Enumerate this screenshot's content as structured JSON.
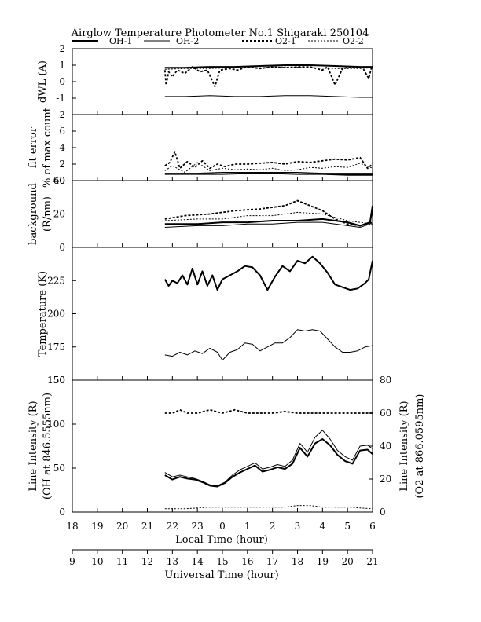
{
  "chart_data": {
    "type": "line",
    "title": "Airglow Temperature Photometer No.1  Shigaraki  250104",
    "legend": {
      "placement": "top",
      "entries": [
        "OH-1",
        "OH-2",
        "O2-1",
        "O2-2"
      ]
    },
    "series_styles": [
      {
        "name": "OH-1",
        "dash": "solid-thick"
      },
      {
        "name": "OH-2",
        "dash": "solid-thin"
      },
      {
        "name": "O2-1",
        "dash": "dashed-thick"
      },
      {
        "name": "O2-2",
        "dash": "dashed-thin"
      }
    ],
    "x_local": {
      "label": "Local Time (hour)",
      "ticks": [
        "18",
        "19",
        "20",
        "21",
        "22",
        "23",
        "0",
        "1",
        "2",
        "3",
        "4",
        "5",
        "6"
      ],
      "range": [
        18,
        30
      ]
    },
    "x_universal": {
      "label": "Universal Time (hour)",
      "ticks": [
        "9",
        "10",
        "11",
        "12",
        "13",
        "14",
        "15",
        "16",
        "17",
        "18",
        "19",
        "20",
        "21"
      ],
      "range": [
        9,
        21
      ]
    },
    "panels": [
      {
        "id": "dwl",
        "ylabel": [
          "dWL (A)"
        ],
        "ylim": [
          -2,
          2
        ],
        "yticks": [
          "-2",
          "-1",
          "0",
          "1",
          "2"
        ],
        "series": [
          {
            "name": "OH-1",
            "x": [
              21.7,
              22.5,
              23.5,
              24.5,
              25.5,
              26.5,
              27.5,
              28.5,
              29.5,
              30
            ],
            "y": [
              0.85,
              0.85,
              0.9,
              0.9,
              0.95,
              1.0,
              1.0,
              0.95,
              0.9,
              0.9
            ]
          },
          {
            "name": "OH-2",
            "x": [
              21.7,
              22.5,
              23.5,
              24.5,
              25.5,
              26.5,
              27.5,
              28.5,
              29.5,
              30
            ],
            "y": [
              -0.9,
              -0.9,
              -0.85,
              -0.9,
              -0.9,
              -0.85,
              -0.85,
              -0.9,
              -0.95,
              -0.95
            ]
          },
          {
            "name": "O2-1",
            "x": [
              21.7,
              21.75,
              21.85,
              22.0,
              22.2,
              22.5,
              22.8,
              23.1,
              23.4,
              23.7,
              23.9,
              24.3,
              24.6,
              25.0,
              25.5,
              26.0,
              26.5,
              27.0,
              27.5,
              28.0,
              28.2,
              28.5,
              28.8,
              29.2,
              29.6,
              29.85,
              29.95,
              30
            ],
            "y": [
              0.7,
              -0.2,
              0.6,
              0.3,
              0.7,
              0.5,
              0.9,
              0.6,
              0.7,
              -0.3,
              0.7,
              0.8,
              0.7,
              0.9,
              0.8,
              0.9,
              0.85,
              0.9,
              0.9,
              0.7,
              0.9,
              -0.2,
              0.8,
              0.9,
              0.85,
              0.2,
              0.8,
              0.9
            ]
          },
          {
            "name": "O2-2",
            "x": [
              21.7,
              22.5,
              23.5,
              24.5,
              25.5,
              26.5,
              27.5,
              28.5,
              29.5,
              30
            ],
            "y": [
              0.75,
              0.8,
              0.8,
              0.85,
              0.85,
              0.9,
              0.85,
              0.8,
              0.8,
              0.85
            ]
          }
        ]
      },
      {
        "id": "fit",
        "ylabel": [
          "fit error",
          "% of max count"
        ],
        "ylim": [
          0,
          8
        ],
        "yticks": [
          "0",
          "2",
          "4",
          "6"
        ],
        "series": [
          {
            "name": "OH-1",
            "x": [
              21.7,
              23,
              24,
              25,
              26,
              27,
              28,
              29,
              30
            ],
            "y": [
              0.8,
              0.8,
              0.8,
              0.9,
              0.9,
              0.8,
              0.8,
              0.7,
              0.7
            ]
          },
          {
            "name": "OH-2",
            "x": [
              21.7,
              23,
              24,
              25,
              26,
              27,
              28,
              29,
              30
            ],
            "y": [
              0.9,
              0.9,
              1.0,
              1.0,
              1.0,
              1.0,
              0.9,
              0.9,
              0.9
            ]
          },
          {
            "name": "O2-1",
            "x": [
              21.7,
              21.9,
              22.1,
              22.3,
              22.6,
              22.9,
              23.2,
              23.5,
              23.8,
              24.1,
              24.5,
              25.0,
              25.5,
              26.0,
              26.5,
              27.0,
              27.5,
              28.0,
              28.5,
              29.0,
              29.5,
              29.8,
              30
            ],
            "y": [
              1.8,
              2.2,
              3.5,
              1.5,
              2.3,
              1.6,
              2.4,
              1.5,
              2.0,
              1.7,
              2.0,
              2.0,
              2.1,
              2.2,
              2.0,
              2.3,
              2.2,
              2.4,
              2.6,
              2.5,
              2.8,
              1.5,
              2.0
            ]
          },
          {
            "name": "O2-2",
            "x": [
              21.7,
              22.0,
              22.5,
              23.0,
              23.5,
              24.0,
              24.5,
              25.0,
              25.5,
              26.0,
              26.5,
              27.0,
              27.5,
              28.0,
              28.5,
              29.0,
              29.5,
              30
            ],
            "y": [
              1.2,
              1.8,
              1.0,
              2.2,
              1.2,
              1.5,
              1.3,
              1.4,
              1.3,
              1.5,
              1.2,
              1.3,
              1.6,
              1.5,
              1.7,
              1.6,
              2.1,
              1.5
            ]
          }
        ]
      },
      {
        "id": "bg",
        "ylabel": [
          "background",
          "(R/nm)"
        ],
        "ylim": [
          0,
          40
        ],
        "yticks": [
          "0",
          "20",
          "40"
        ],
        "yticks_minor": [
          "60"
        ],
        "series": [
          {
            "name": "OH-1",
            "x": [
              21.7,
              23,
              24,
              25,
              26,
              27,
              28,
              29,
              29.5,
              29.9,
              30
            ],
            "y": [
              14,
              14,
              15,
              15,
              16,
              16,
              17,
              15,
              13,
              15,
              25
            ]
          },
          {
            "name": "OH-2",
            "x": [
              21.7,
              23,
              24,
              25,
              26,
              27,
              28,
              29,
              29.5,
              29.9,
              30
            ],
            "y": [
              12,
              13,
              13,
              14,
              14,
              15,
              15,
              13,
              12,
              14,
              22
            ]
          },
          {
            "name": "O2-1",
            "x": [
              21.7,
              22.5,
              23.5,
              24.5,
              25.5,
              26.5,
              27.0,
              27.5,
              28.0,
              28.5,
              29.0,
              29.5,
              30
            ],
            "y": [
              17,
              19,
              20,
              22,
              23,
              25,
              28,
              25,
              22,
              17,
              14,
              13,
              15
            ]
          },
          {
            "name": "O2-2",
            "x": [
              21.7,
              23,
              24,
              25,
              26,
              27,
              28,
              29,
              30
            ],
            "y": [
              16,
              17,
              17,
              19,
              19,
              21,
              20,
              16,
              14
            ]
          }
        ]
      },
      {
        "id": "temp",
        "ylabel": [
          "Temperature (K)"
        ],
        "ylim": [
          150,
          250
        ],
        "yticks": [
          "150",
          "175",
          "200",
          "225"
        ],
        "series": [
          {
            "name": "OH-1",
            "x": [
              21.7,
              21.85,
              22.0,
              22.2,
              22.4,
              22.6,
              22.8,
              23.0,
              23.2,
              23.4,
              23.6,
              23.8,
              24.0,
              24.3,
              24.6,
              24.9,
              25.2,
              25.5,
              25.8,
              26.1,
              26.4,
              26.7,
              27.0,
              27.3,
              27.6,
              27.9,
              28.2,
              28.5,
              28.8,
              29.1,
              29.4,
              29.7,
              29.85,
              30
            ],
            "y": [
              226,
              221,
              225,
              223,
              229,
              222,
              234,
              222,
              232,
              221,
              229,
              218,
              226,
              229,
              232,
              236,
              235,
              229,
              218,
              228,
              236,
              232,
              240,
              238,
              243,
              238,
              231,
              222,
              220,
              218,
              219,
              223,
              226,
              240
            ]
          },
          {
            "name": "OH-2",
            "x": [
              21.7,
              22.0,
              22.3,
              22.6,
              22.9,
              23.2,
              23.5,
              23.8,
              24.0,
              24.3,
              24.6,
              24.9,
              25.2,
              25.5,
              25.8,
              26.1,
              26.4,
              26.7,
              27.0,
              27.3,
              27.6,
              27.9,
              28.2,
              28.5,
              28.8,
              29.1,
              29.4,
              29.7,
              30
            ],
            "y": [
              169,
              168,
              171,
              169,
              172,
              170,
              174,
              171,
              165,
              171,
              173,
              178,
              177,
              172,
              175,
              178,
              178,
              182,
              188,
              187,
              188,
              187,
              181,
              175,
              171,
              171,
              172,
              175,
              176
            ]
          }
        ]
      },
      {
        "id": "int",
        "ylabel_left": [
          "Line Intensity (R)",
          "(OH at 846.5555nm)"
        ],
        "ylabel_right": [
          "Line Intensity (R)",
          "(O2 at 866.0595nm)"
        ],
        "ylim_left": [
          0,
          150
        ],
        "ylim_right": [
          0,
          80
        ],
        "yticks_left": [
          "0",
          "50",
          "100",
          "150"
        ],
        "yticks_right": [
          "0",
          "20",
          "40",
          "60",
          "80"
        ],
        "series": [
          {
            "name": "OH-1",
            "axis": "left",
            "x": [
              21.7,
              22.0,
              22.3,
              22.6,
              22.9,
              23.2,
              23.5,
              23.8,
              24.1,
              24.4,
              24.7,
              25.0,
              25.3,
              25.6,
              25.9,
              26.2,
              26.5,
              26.8,
              27.1,
              27.4,
              27.7,
              28.0,
              28.3,
              28.6,
              28.9,
              29.2,
              29.5,
              29.8,
              30
            ],
            "y": [
              42,
              37,
              40,
              38,
              37,
              34,
              30,
              29,
              33,
              40,
              45,
              49,
              53,
              46,
              48,
              51,
              49,
              55,
              73,
              63,
              78,
              83,
              76,
              65,
              58,
              55,
              70,
              71,
              66
            ]
          },
          {
            "name": "OH-2",
            "axis": "left",
            "x": [
              21.7,
              22.0,
              22.3,
              22.6,
              22.9,
              23.2,
              23.5,
              23.8,
              24.1,
              24.4,
              24.7,
              25.0,
              25.3,
              25.6,
              25.9,
              26.2,
              26.5,
              26.8,
              27.1,
              27.4,
              27.7,
              28.0,
              28.3,
              28.6,
              28.9,
              29.2,
              29.5,
              29.8,
              30
            ],
            "y": [
              45,
              40,
              42,
              40,
              38,
              35,
              31,
              30,
              34,
              42,
              48,
              52,
              56,
              49,
              51,
              54,
              52,
              59,
              78,
              68,
              85,
              93,
              83,
              70,
              63,
              59,
              75,
              76,
              72
            ]
          },
          {
            "name": "O2-1",
            "axis": "right",
            "x": [
              21.7,
              22.0,
              22.3,
              22.6,
              23.0,
              23.5,
              24.0,
              24.5,
              25.0,
              25.5,
              26.0,
              26.5,
              27.0,
              27.5,
              28.0,
              28.5,
              29.0,
              29.5,
              30
            ],
            "y": [
              60,
              60,
              62,
              60,
              60,
              62,
              60,
              62,
              60,
              60,
              60,
              61,
              60,
              60,
              60,
              60,
              60,
              60,
              60
            ]
          },
          {
            "name": "O2-2",
            "axis": "right",
            "x": [
              21.7,
              22.5,
              23.5,
              24.5,
              25.5,
              26.5,
              27.0,
              27.5,
              28.0,
              29.0,
              30
            ],
            "y": [
              2,
              2,
              3,
              3,
              3,
              3,
              4,
              4,
              3,
              3,
              2
            ]
          }
        ]
      }
    ]
  }
}
